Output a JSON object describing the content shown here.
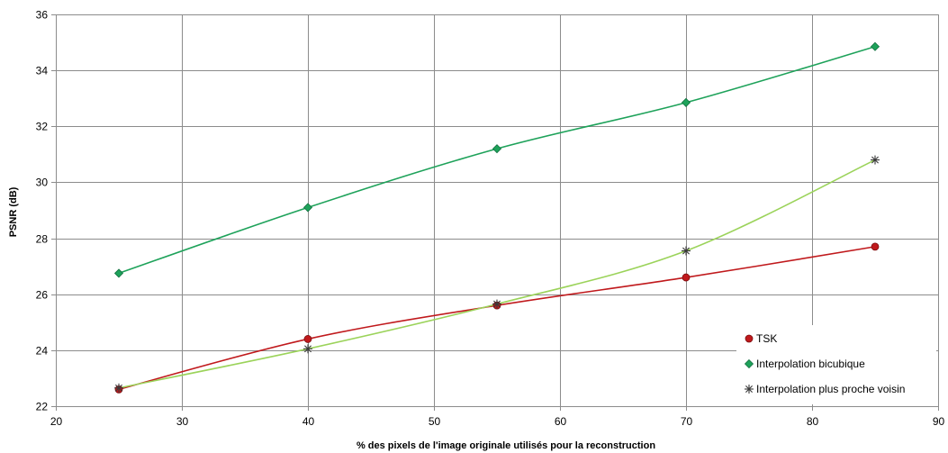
{
  "chart_data": {
    "type": "line",
    "xlabel": "% des pixels de l'image originale utilisés pour la reconstruction",
    "ylabel": "PSNR (dB)",
    "xlim": [
      20,
      90
    ],
    "ylim": [
      22,
      36
    ],
    "xticks": [
      20,
      30,
      40,
      50,
      60,
      70,
      80,
      90
    ],
    "yticks": [
      22,
      24,
      26,
      28,
      30,
      32,
      34,
      36
    ],
    "grid": true,
    "legend_position": "bottom-right",
    "x": [
      25,
      40,
      55,
      70,
      85
    ],
    "series": [
      {
        "name": "TSK",
        "values": [
          22.6,
          24.4,
          25.6,
          26.6,
          27.7
        ],
        "color": "#c0191c",
        "marker": "circle"
      },
      {
        "name": "Interpolation bicubique",
        "values": [
          26.75,
          29.1,
          31.2,
          32.85,
          34.85
        ],
        "color": "#1ea25a",
        "marker": "diamond"
      },
      {
        "name": "Interpolation plus proche voisin",
        "values": [
          22.65,
          24.05,
          25.65,
          27.55,
          30.8
        ],
        "color": "#9bd35a",
        "marker": "star"
      }
    ]
  }
}
